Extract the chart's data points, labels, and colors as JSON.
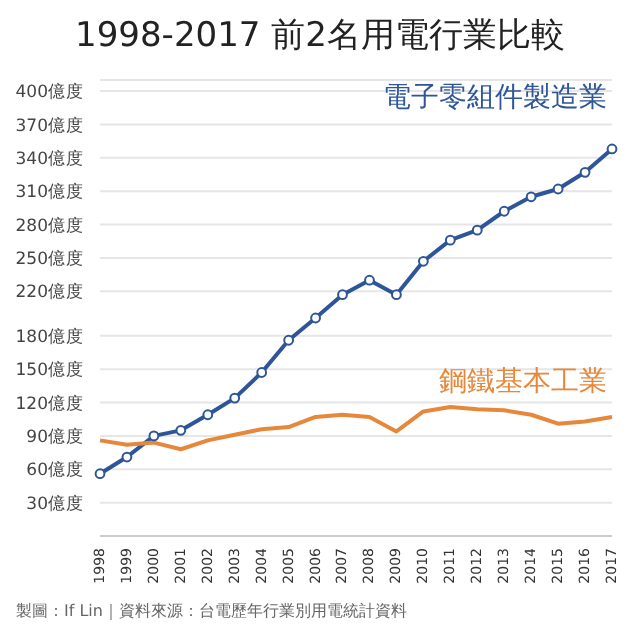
{
  "chart_data": {
    "type": "line",
    "title": "1998-2017 前2名用電行業比較",
    "categories": [
      "1998",
      "1999",
      "2000",
      "2001",
      "2002",
      "2003",
      "2004",
      "2005",
      "2006",
      "2007",
      "2008",
      "2009",
      "2010",
      "2011",
      "2012",
      "2013",
      "2014",
      "2015",
      "2016",
      "2017"
    ],
    "series": [
      {
        "name": "電子零組件製造業",
        "color": "#2e5597",
        "marker": "circle",
        "values": [
          56,
          71,
          90,
          95,
          109,
          124,
          147,
          176,
          196,
          217,
          230,
          217,
          247,
          266,
          275,
          292,
          305,
          312,
          327,
          348
        ]
      },
      {
        "name": "鋼鐵基本工業",
        "color": "#e6883c",
        "marker": "none",
        "values": [
          86,
          82,
          84,
          78,
          86,
          91,
          96,
          98,
          107,
          109,
          107,
          94,
          112,
          116,
          114,
          113,
          109,
          101,
          103,
          107
        ]
      }
    ],
    "ylim": [
      0,
      410
    ],
    "yticks": [
      {
        "value": 30,
        "label": "30億度"
      },
      {
        "value": 60,
        "label": "60億度"
      },
      {
        "value": 90,
        "label": "90億度"
      },
      {
        "value": 120,
        "label": "120億度"
      },
      {
        "value": 150,
        "label": "150億度"
      },
      {
        "value": 180,
        "label": "180億度"
      },
      {
        "value": 220,
        "label": "220億度"
      },
      {
        "value": 250,
        "label": "250億度"
      },
      {
        "value": 280,
        "label": "280億度"
      },
      {
        "value": 310,
        "label": "310億度"
      },
      {
        "value": 340,
        "label": "340億度"
      },
      {
        "value": 370,
        "label": "370億度"
      },
      {
        "value": 400,
        "label": "400億度"
      }
    ],
    "grid": "y",
    "legend": false,
    "line_style": "solid",
    "annotations": [
      "製圖：If Lin｜資料來源：台電歷年行業別用電統計資料"
    ]
  }
}
